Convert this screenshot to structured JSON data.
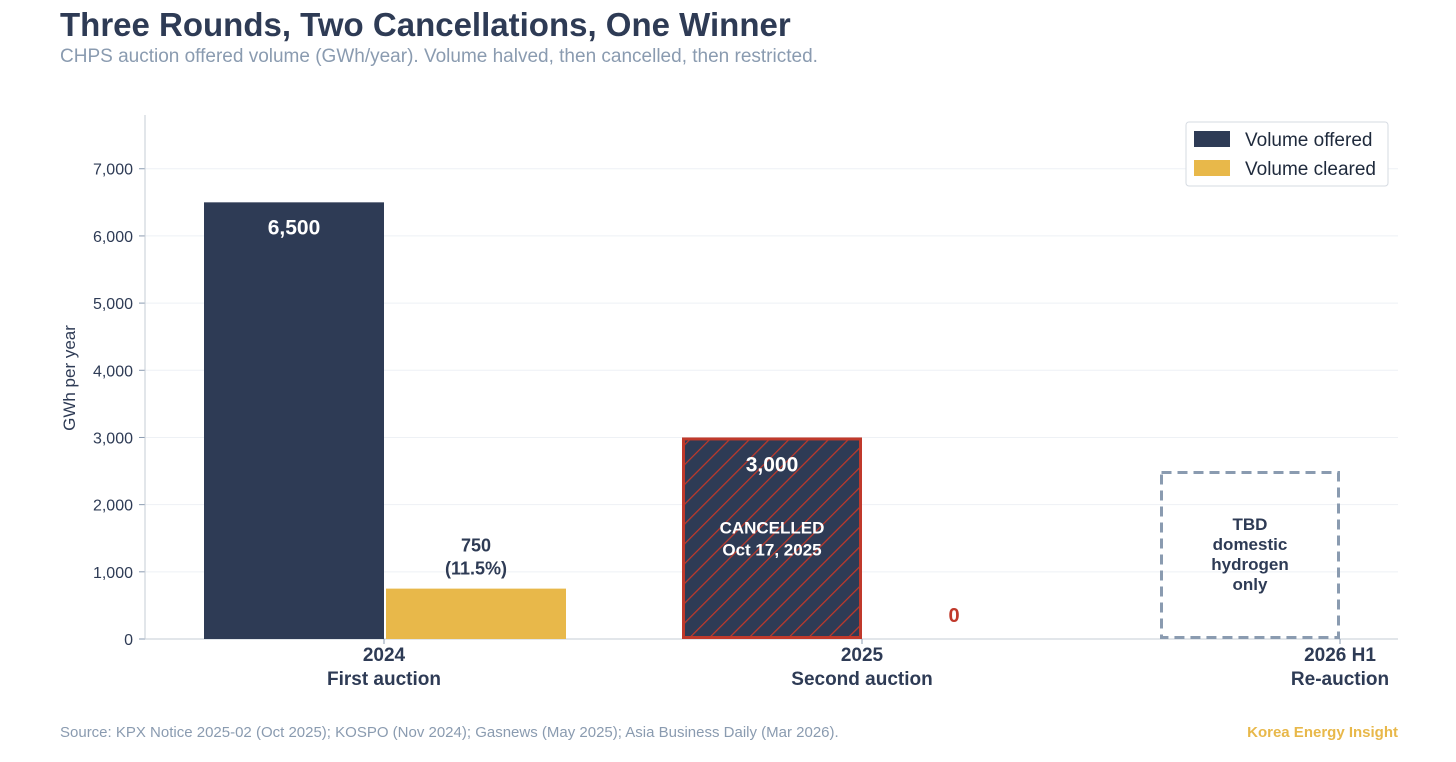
{
  "header": {
    "title": "Three Rounds, Two Cancellations, One Winner",
    "subtitle": "CHPS auction offered volume (GWh/year). Volume halved, then cancelled, then restricted."
  },
  "footer": {
    "source": "Source: KPX Notice 2025-02 (Oct 2025); KOSPO (Nov 2024); Gasnews (May 2025); Asia Business Daily (Mar 2026).",
    "brand": "Korea Energy Insight"
  },
  "colors": {
    "offered": "#2e3b55",
    "cleared": "#e8b84a",
    "cancelled_border": "#c0392b",
    "zero_label": "#c0392b",
    "tbd_border": "#8a9bb0",
    "axis_text": "#2e3b55",
    "grid": "#eef1f5"
  },
  "chart_data": {
    "type": "bar",
    "title": "Three Rounds, Two Cancellations, One Winner",
    "ylabel": "GWh per year",
    "ylim": [
      0,
      7800
    ],
    "yticks": [
      0,
      1000,
      2000,
      3000,
      4000,
      5000,
      6000,
      7000
    ],
    "ytick_labels": [
      "0",
      "1,000",
      "2,000",
      "3,000",
      "4,000",
      "5,000",
      "6,000",
      "7,000"
    ],
    "grid": true,
    "legend_position": "top-right",
    "categories": [
      {
        "line1": "2024",
        "line2": "First auction"
      },
      {
        "line1": "2025",
        "line2": "Second auction"
      },
      {
        "line1": "2026 H1",
        "line2": "Re-auction"
      }
    ],
    "series": [
      {
        "name": "Volume offered",
        "values": [
          6500,
          3000,
          2500
        ]
      },
      {
        "name": "Volume cleared",
        "values": [
          750,
          0,
          null
        ]
      }
    ],
    "annotations": {
      "offered_labels": [
        "6,500",
        "3,000"
      ],
      "cleared_label_line1": "750",
      "cleared_label_line2": "(11.5%)",
      "cleared_zero_label": "0",
      "cancelled_line1": "CANCELLED",
      "cancelled_line2": "Oct 17, 2025",
      "tbd_lines": [
        "TBD",
        "domestic",
        "hydrogen",
        "only"
      ]
    }
  }
}
